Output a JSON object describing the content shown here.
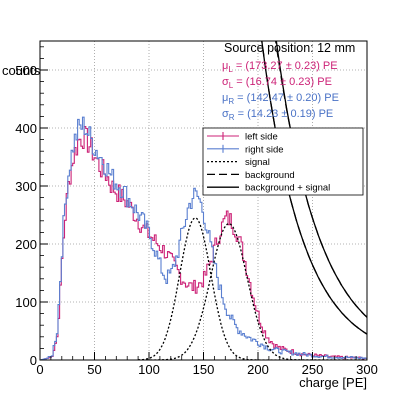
{
  "chart_data": {
    "type": "line",
    "xlabel": "charge [PE]",
    "ylabel": "counts",
    "xlim": [
      0,
      300
    ],
    "ylim": [
      0,
      550
    ],
    "x_ticks": [
      0,
      50,
      100,
      150,
      200,
      250,
      300
    ],
    "y_ticks": [
      0,
      100,
      200,
      300,
      400,
      500
    ],
    "grid": true,
    "legend_position": "top-right",
    "annotations": {
      "title": "Source position: 12 mm",
      "lines": [
        {
          "text": "μ_L = (173.27 ± 0.23) PE",
          "sym": "μ",
          "sub": "L",
          "rest": " = (173.27 ± 0.23) PE",
          "color": "#cc2277"
        },
        {
          "text": "σ_L = (16.74 ± 0.23) PE",
          "sym": "σ",
          "sub": "L",
          "rest": " = (16.74 ± 0.23) PE",
          "color": "#cc2277"
        },
        {
          "text": "μ_R = (142.47 ± 0.20) PE",
          "sym": "μ",
          "sub": "R",
          "rest": " = (142.47 ± 0.20) PE",
          "color": "#4a72c6"
        },
        {
          "text": "σ_R = (14.23 ± 0.19) PE",
          "sym": "σ",
          "sub": "R",
          "rest": " = (14.23 ± 0.19) PE",
          "color": "#4a72c6"
        }
      ]
    },
    "legend": [
      {
        "label": "left side",
        "style": "hist",
        "color": "#cc2277"
      },
      {
        "label": "right side",
        "style": "hist",
        "color": "#5a7fd0"
      },
      {
        "label": "signal",
        "style": "dotted",
        "color": "#000000"
      },
      {
        "label": "background",
        "style": "dashed",
        "color": "#000000"
      },
      {
        "label": "background + signal",
        "style": "solid",
        "color": "#000000"
      }
    ],
    "series": [
      {
        "name": "left side",
        "color": "#cc2277",
        "points": [
          [
            0,
            0
          ],
          [
            10,
            5
          ],
          [
            15,
            40
          ],
          [
            18,
            120
          ],
          [
            20,
            190
          ],
          [
            23,
            260
          ],
          [
            26,
            310
          ],
          [
            30,
            350
          ],
          [
            35,
            380
          ],
          [
            40,
            385
          ],
          [
            45,
            370
          ],
          [
            50,
            350
          ],
          [
            55,
            330
          ],
          [
            60,
            320
          ],
          [
            65,
            300
          ],
          [
            70,
            290
          ],
          [
            75,
            280
          ],
          [
            80,
            270
          ],
          [
            85,
            255
          ],
          [
            90,
            240
          ],
          [
            95,
            225
          ],
          [
            100,
            215
          ],
          [
            105,
            205
          ],
          [
            110,
            195
          ],
          [
            115,
            185
          ],
          [
            120,
            170
          ],
          [
            125,
            155
          ],
          [
            130,
            140
          ],
          [
            135,
            130
          ],
          [
            140,
            125
          ],
          [
            145,
            130
          ],
          [
            150,
            140
          ],
          [
            155,
            165
          ],
          [
            160,
            195
          ],
          [
            165,
            225
          ],
          [
            170,
            245
          ],
          [
            175,
            240
          ],
          [
            180,
            220
          ],
          [
            185,
            190
          ],
          [
            190,
            150
          ],
          [
            195,
            110
          ],
          [
            200,
            75
          ],
          [
            205,
            50
          ],
          [
            210,
            35
          ],
          [
            215,
            25
          ],
          [
            220,
            20
          ],
          [
            230,
            15
          ],
          [
            240,
            10
          ],
          [
            250,
            8
          ],
          [
            270,
            5
          ],
          [
            300,
            3
          ]
        ]
      },
      {
        "name": "right side",
        "color": "#5a7fd0",
        "points": [
          [
            0,
            0
          ],
          [
            10,
            5
          ],
          [
            15,
            50
          ],
          [
            18,
            140
          ],
          [
            20,
            210
          ],
          [
            23,
            280
          ],
          [
            26,
            330
          ],
          [
            30,
            370
          ],
          [
            35,
            400
          ],
          [
            40,
            405
          ],
          [
            45,
            385
          ],
          [
            50,
            365
          ],
          [
            55,
            350
          ],
          [
            60,
            335
          ],
          [
            65,
            315
          ],
          [
            70,
            305
          ],
          [
            75,
            295
          ],
          [
            80,
            280
          ],
          [
            85,
            265
          ],
          [
            90,
            250
          ],
          [
            95,
            235
          ],
          [
            100,
            215
          ],
          [
            105,
            190
          ],
          [
            110,
            160
          ],
          [
            115,
            140
          ],
          [
            120,
            150
          ],
          [
            125,
            180
          ],
          [
            130,
            220
          ],
          [
            135,
            260
          ],
          [
            140,
            285
          ],
          [
            145,
            280
          ],
          [
            150,
            250
          ],
          [
            155,
            205
          ],
          [
            160,
            160
          ],
          [
            165,
            120
          ],
          [
            170,
            90
          ],
          [
            175,
            70
          ],
          [
            180,
            55
          ],
          [
            190,
            40
          ],
          [
            200,
            30
          ],
          [
            210,
            20
          ],
          [
            220,
            15
          ],
          [
            240,
            10
          ],
          [
            260,
            6
          ],
          [
            300,
            3
          ]
        ]
      },
      {
        "name": "signal left",
        "color": "#000000",
        "style": "dotted",
        "peak": 173.27,
        "sigma": 16.74,
        "amp": 235
      },
      {
        "name": "signal right",
        "color": "#000000",
        "style": "dotted",
        "peak": 142.47,
        "sigma": 14.23,
        "amp": 245
      },
      {
        "name": "background left",
        "color": "#000000",
        "style": "dashed",
        "b": 11.5,
        "c": 0.024
      },
      {
        "name": "background right",
        "color": "#000000",
        "style": "dashed",
        "b": 11.6,
        "c": 0.026
      }
    ]
  }
}
